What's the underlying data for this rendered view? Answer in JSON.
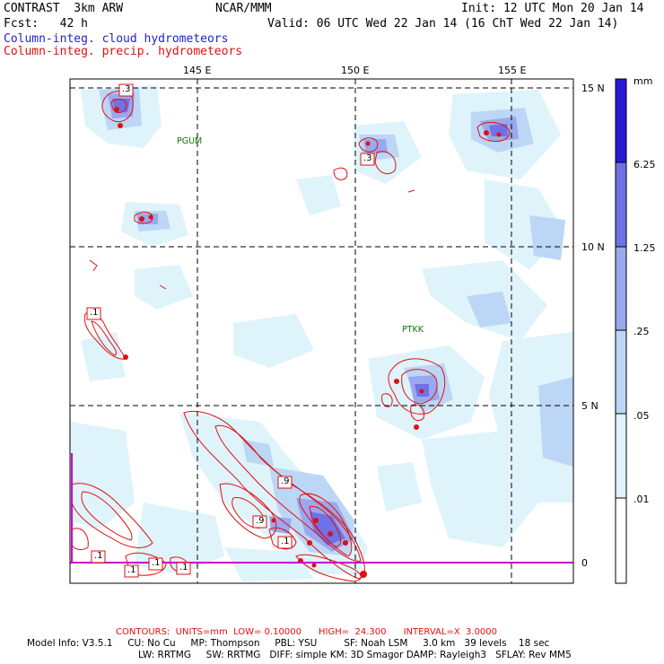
{
  "header": {
    "left_line1": "CONTRAST  3km ARW",
    "center_line1": "NCAR/MMM",
    "right_line1": "Init: 12 UTC Mon 20 Jan 14",
    "left_line2": "Fcst:   42 h",
    "right_line2": "Valid: 06 UTC Wed 22 Jan 14 (16 ChT Wed 22 Jan 14)",
    "legend_cloud": "Column-integ. cloud hydrometeors",
    "legend_precip": "Column-integ. precip. hydrometeors"
  },
  "colors": {
    "cloud_text": "#1f1fd6",
    "precip_text": "#e01010",
    "station_text": "#0a7a0a",
    "coast_line": "#cc00cc",
    "shade_levels": [
      "#ffffff",
      "#dff3fb",
      "#bcd6f6",
      "#9aa8ee",
      "#6f72e6",
      "#2a1ad8"
    ]
  },
  "map": {
    "lon_labels": [
      "145 E",
      "150 E",
      "155 E"
    ],
    "lat_labels": [
      "15 N",
      "10 N",
      "5 N",
      "0"
    ],
    "stations": [
      "PGUM",
      "PTKK"
    ],
    "contour_labels": [
      ".3",
      ".3",
      ".1",
      ".9",
      ".9",
      ".1",
      ".1",
      ".1",
      ".1",
      ".1"
    ]
  },
  "colorbar": {
    "units": "mm",
    "labels": [
      "6.25",
      "1.25",
      ".25",
      ".05",
      ".01"
    ]
  },
  "footer": {
    "contours_line": "CONTOURS:  UNITS=mm  LOW= 0.10000      HIGH=  24.300      INTERVAL=X  3.0000",
    "model_line1": "Model Info: V3.5.1     CU: No Cu     MP: Thompson     PBL: YSU         SF: Noah LSM     3.0 km   39 levels    18 sec",
    "model_line2": "LW: RRTMG     SW: RRTMG   DIFF: simple KM: 3D Smagor DAMP: Rayleigh3   SFLAY: Rev MM5"
  }
}
